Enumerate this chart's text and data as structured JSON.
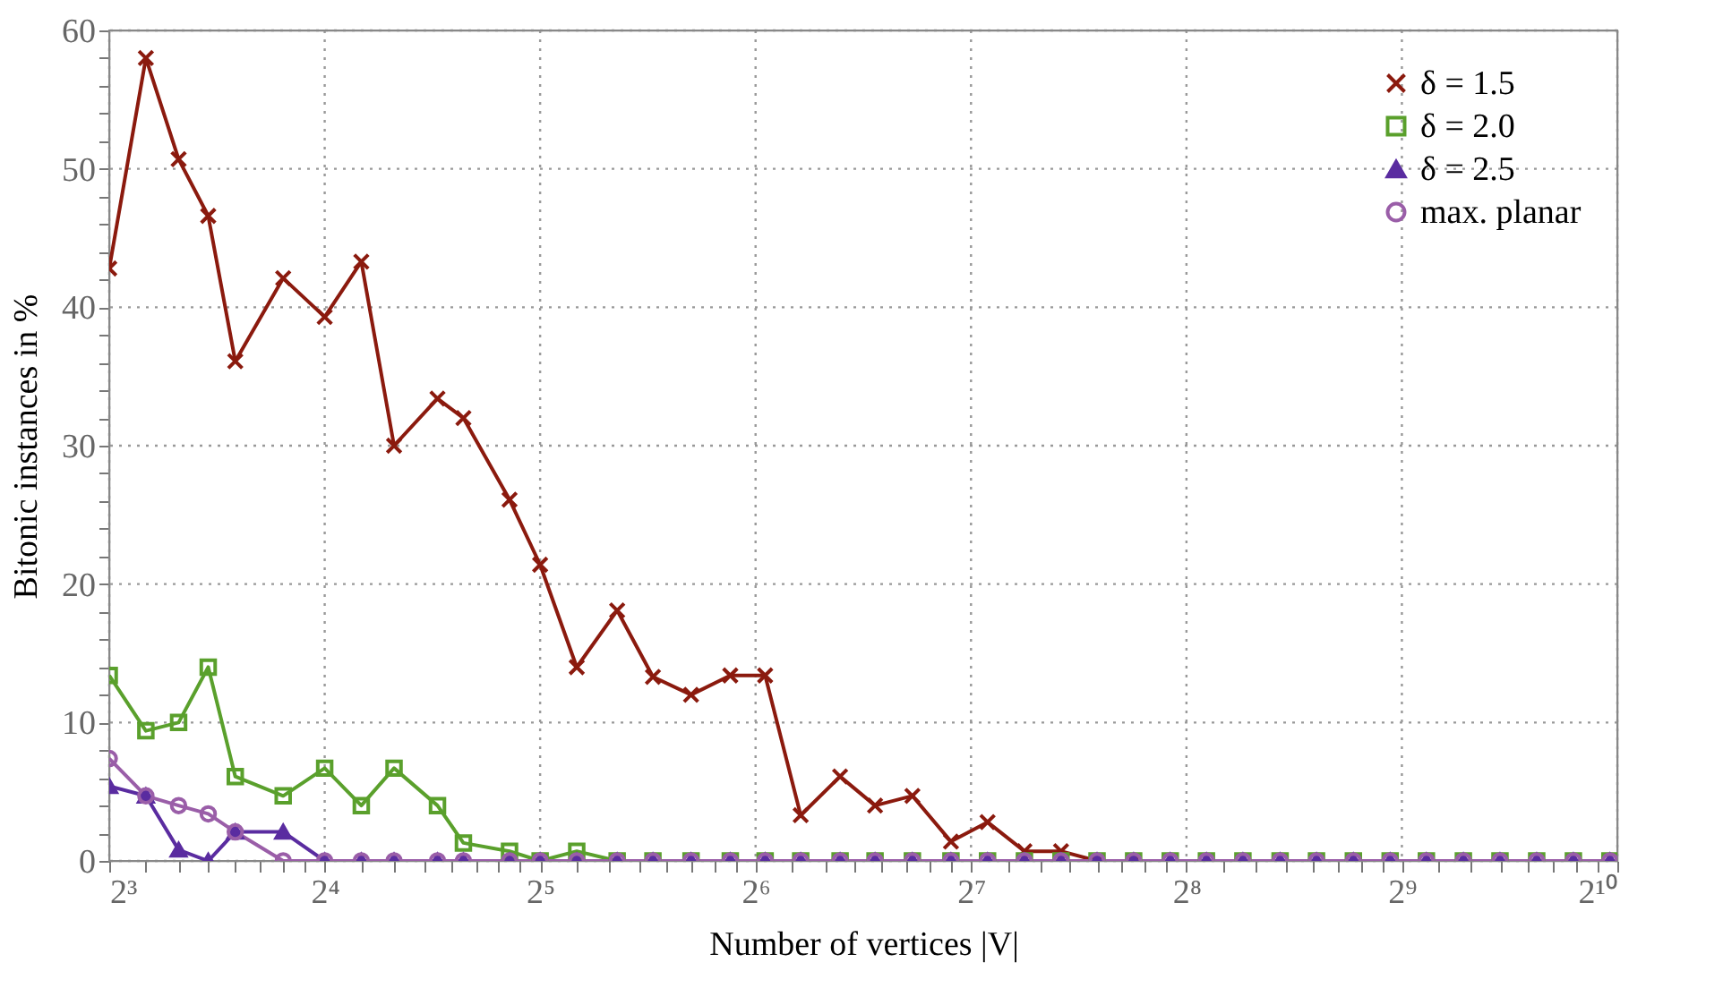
{
  "chart_data": {
    "type": "line",
    "xlabel": "Number of vertices |V|",
    "ylabel": "Bitonic instances in %",
    "log": "x",
    "grid": true,
    "legend": "top right",
    "line_style": "solid",
    "x": [
      8,
      9,
      10,
      11,
      12,
      14,
      16,
      18,
      20,
      23,
      25,
      29,
      32,
      36,
      41,
      46,
      52,
      59,
      66,
      74,
      84,
      94,
      106,
      120,
      135,
      152,
      171,
      192,
      216,
      243,
      273,
      307,
      346,
      389,
      438,
      493,
      554,
      624,
      702,
      790,
      889,
      1000
    ],
    "xlim": [
      8,
      1024
    ],
    "ylim": [
      0,
      60
    ],
    "xticks": [
      {
        "value": 8,
        "label": "2³"
      },
      {
        "value": 9,
        "label": null
      },
      {
        "value": 10,
        "label": null
      },
      {
        "value": 11,
        "label": null
      },
      {
        "value": 12,
        "label": null
      },
      {
        "value": 13,
        "label": null
      },
      {
        "value": 14,
        "label": null
      },
      {
        "value": 15,
        "label": null
      },
      {
        "value": 16,
        "label": "2⁴"
      },
      {
        "value": 18,
        "label": null
      },
      {
        "value": 20,
        "label": null
      },
      {
        "value": 22,
        "label": null
      },
      {
        "value": 24,
        "label": null
      },
      {
        "value": 26,
        "label": null
      },
      {
        "value": 28,
        "label": null
      },
      {
        "value": 30,
        "label": null
      },
      {
        "value": 32,
        "label": "2⁵"
      },
      {
        "value": 36,
        "label": null
      },
      {
        "value": 40,
        "label": null
      },
      {
        "value": 44,
        "label": null
      },
      {
        "value": 48,
        "label": null
      },
      {
        "value": 52,
        "label": null
      },
      {
        "value": 56,
        "label": null
      },
      {
        "value": 60,
        "label": null
      },
      {
        "value": 64,
        "label": "2⁶"
      },
      {
        "value": 72,
        "label": null
      },
      {
        "value": 80,
        "label": null
      },
      {
        "value": 88,
        "label": null
      },
      {
        "value": 96,
        "label": null
      },
      {
        "value": 104,
        "label": null
      },
      {
        "value": 112,
        "label": null
      },
      {
        "value": 120,
        "label": null
      },
      {
        "value": 128,
        "label": "2⁷"
      },
      {
        "value": 144,
        "label": null
      },
      {
        "value": 160,
        "label": null
      },
      {
        "value": 176,
        "label": null
      },
      {
        "value": 192,
        "label": null
      },
      {
        "value": 208,
        "label": null
      },
      {
        "value": 224,
        "label": null
      },
      {
        "value": 240,
        "label": null
      },
      {
        "value": 256,
        "label": "2⁸"
      },
      {
        "value": 288,
        "label": null
      },
      {
        "value": 320,
        "label": null
      },
      {
        "value": 352,
        "label": null
      },
      {
        "value": 384,
        "label": null
      },
      {
        "value": 416,
        "label": null
      },
      {
        "value": 448,
        "label": null
      },
      {
        "value": 480,
        "label": null
      },
      {
        "value": 512,
        "label": "2⁹"
      },
      {
        "value": 576,
        "label": null
      },
      {
        "value": 640,
        "label": null
      },
      {
        "value": 704,
        "label": null
      },
      {
        "value": 768,
        "label": null
      },
      {
        "value": 832,
        "label": null
      },
      {
        "value": 896,
        "label": null
      },
      {
        "value": 960,
        "label": null
      },
      {
        "value": 1024,
        "label": "2¹⁰"
      }
    ],
    "yticks": [
      0,
      {
        "value": 2,
        "label": null
      },
      {
        "value": 4,
        "label": null
      },
      {
        "value": 6,
        "label": null
      },
      {
        "value": 8,
        "label": null
      },
      10,
      {
        "value": 12,
        "label": null
      },
      {
        "value": 14,
        "label": null
      },
      {
        "value": 16,
        "label": null
      },
      {
        "value": 18,
        "label": null
      },
      20,
      {
        "value": 22,
        "label": null
      },
      {
        "value": 24,
        "label": null
      },
      {
        "value": 26,
        "label": null
      },
      {
        "value": 28,
        "label": null
      },
      30,
      {
        "value": 32,
        "label": null
      },
      {
        "value": 34,
        "label": null
      },
      {
        "value": 36,
        "label": null
      },
      {
        "value": 38,
        "label": null
      },
      40,
      {
        "value": 42,
        "label": null
      },
      {
        "value": 44,
        "label": null
      },
      {
        "value": 46,
        "label": null
      },
      {
        "value": 48,
        "label": null
      },
      50,
      {
        "value": 52,
        "label": null
      },
      {
        "value": 54,
        "label": null
      },
      {
        "value": 56,
        "label": null
      },
      {
        "value": 58,
        "label": null
      },
      60
    ],
    "series": [
      {
        "name": "δ = 1.5",
        "color": "#8b1a0e",
        "marker": "cross",
        "values": [
          42.8,
          58.0,
          50.7,
          46.6,
          36.1,
          42.1,
          39.3,
          43.3,
          30.0,
          33.4,
          32.0,
          26.1,
          21.4,
          14.0,
          18.1,
          13.3,
          12.0,
          13.4,
          13.4,
          3.3,
          6.1,
          4.0,
          4.7,
          1.4,
          2.8,
          0.7,
          0.7,
          0,
          0,
          null,
          null,
          null,
          null,
          null,
          null,
          null,
          null,
          null,
          null,
          null,
          null,
          null
        ]
      },
      {
        "name": "δ = 2.0",
        "color": "#5aa02c",
        "marker": "square",
        "values": [
          13.4,
          9.4,
          10.0,
          14.0,
          6.1,
          4.7,
          6.7,
          4.0,
          6.7,
          4.0,
          1.3,
          0.7,
          0,
          0.7,
          0,
          0,
          0,
          0,
          0,
          0,
          0,
          0,
          0,
          0,
          0,
          0,
          0,
          0,
          0,
          0,
          0,
          0,
          0,
          0,
          0,
          0,
          0,
          0,
          0,
          0,
          0,
          0
        ]
      },
      {
        "name": "δ = 2.5",
        "color": "#5a2ca0",
        "marker": "triangle",
        "values": [
          5.4,
          4.7,
          0.8,
          0,
          2.1,
          2.1,
          0,
          0,
          0,
          0,
          0,
          0,
          0,
          0,
          0,
          0,
          0,
          0,
          0,
          0,
          0,
          0,
          0,
          0,
          0,
          0,
          0,
          0,
          0,
          0,
          0,
          0,
          0,
          0,
          0,
          0,
          0,
          0,
          0,
          0,
          0,
          0
        ]
      },
      {
        "name": "max. planar",
        "color": "#9a5ea8",
        "marker": "circle",
        "values": [
          7.4,
          4.7,
          4.0,
          3.4,
          2.1,
          0,
          0,
          0,
          0,
          0,
          0,
          0,
          0,
          0,
          0,
          0,
          0,
          0,
          0,
          0,
          0,
          0,
          0,
          0,
          0,
          0,
          0,
          0,
          0,
          0,
          0,
          0,
          0,
          0,
          0,
          0,
          0,
          0,
          0,
          0,
          0,
          0
        ]
      }
    ]
  }
}
